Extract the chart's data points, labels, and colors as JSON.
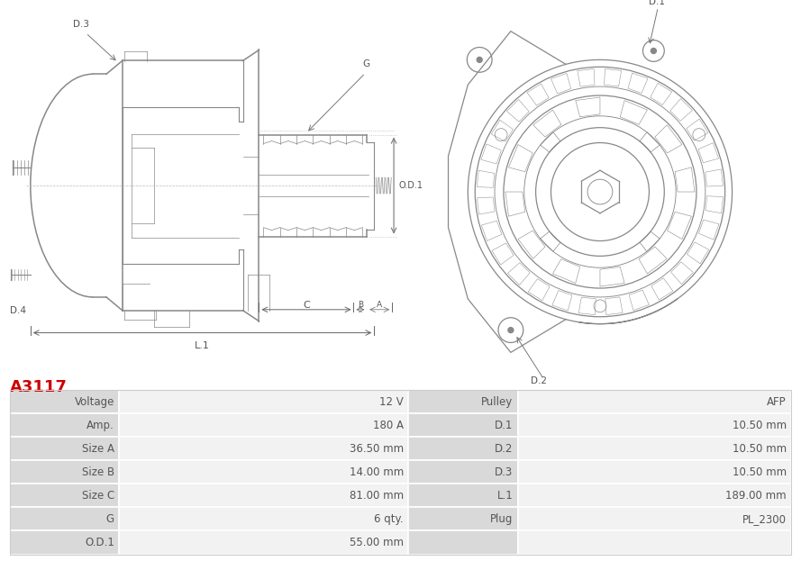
{
  "title": "A3117",
  "title_color": "#cc0000",
  "title_fontsize": 13,
  "bg_color": "#ffffff",
  "table_col1_bg": "#d9d9d9",
  "table_col2_bg": "#f2f2f2",
  "table_border": "#cccccc",
  "text_color": "#555555",
  "lc": "#888888",
  "rows": [
    [
      "Voltage",
      "12 V",
      "Pulley",
      "AFP"
    ],
    [
      "Amp.",
      "180 A",
      "D.1",
      "10.50 mm"
    ],
    [
      "Size A",
      "36.50 mm",
      "D.2",
      "10.50 mm"
    ],
    [
      "Size B",
      "14.00 mm",
      "D.3",
      "10.50 mm"
    ],
    [
      "Size C",
      "81.00 mm",
      "L.1",
      "189.00 mm"
    ],
    [
      "G",
      "6 qty.",
      "Plug",
      "PL_2300"
    ],
    [
      "O.D.1",
      "55.00 mm",
      "",
      ""
    ]
  ]
}
